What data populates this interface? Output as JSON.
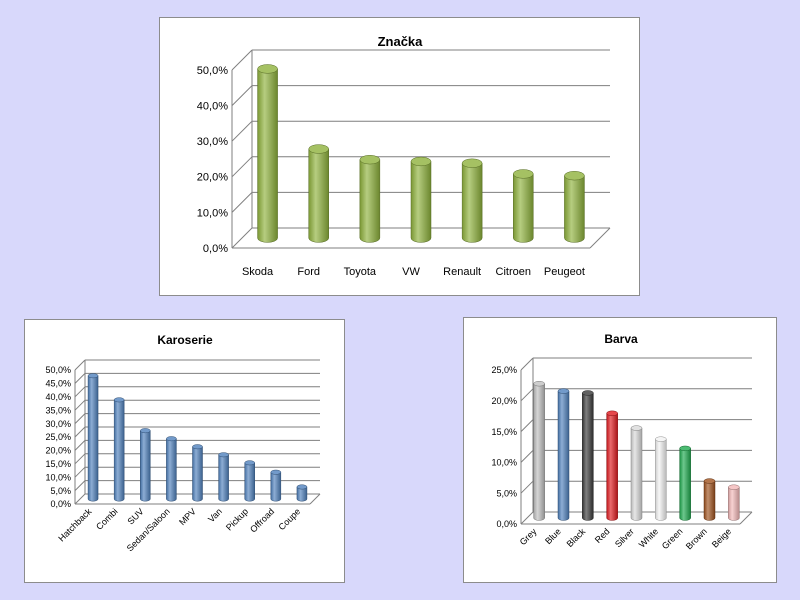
{
  "chart_data": [
    {
      "id": "znacka",
      "type": "bar",
      "title": "Značka",
      "categories": [
        "Skoda",
        "Ford",
        "Toyota",
        "VW",
        "Renault",
        "Citroen",
        "Peugeot"
      ],
      "values": [
        47.5,
        25.0,
        22.0,
        21.5,
        21.0,
        18.0,
        17.5
      ],
      "yticks": [
        "0,0%",
        "10,0%",
        "20,0%",
        "30,0%",
        "40,0%",
        "50,0%"
      ],
      "ylim": [
        0,
        50
      ],
      "xlabel": "",
      "ylabel": "",
      "legend": "none",
      "colors": [
        "#8fb23c"
      ]
    },
    {
      "id": "karoserie",
      "type": "bar",
      "title": "Karoserie",
      "categories": [
        "Hatchback",
        "Combi",
        "SUV",
        "Sedan/Saloon",
        "MPV",
        "Van",
        "Pickup",
        "Offroad",
        "Coupe"
      ],
      "values": [
        46.0,
        37.0,
        25.5,
        22.5,
        19.5,
        16.5,
        13.5,
        10.0,
        4.5
      ],
      "yticks": [
        "0,0%",
        "5,0%",
        "10,0%",
        "15,0%",
        "20,0%",
        "25,0%",
        "30,0%",
        "35,0%",
        "40,0%",
        "45,0%",
        "50,0%"
      ],
      "ylim": [
        0,
        50
      ],
      "xlabel": "",
      "ylabel": "",
      "legend": "none",
      "colors": [
        "#4f81bd"
      ]
    },
    {
      "id": "barva",
      "type": "bar",
      "title": "Barva",
      "categories": [
        "Grey",
        "Blue",
        "Black",
        "Red",
        "Silver",
        "White",
        "Green",
        "Brown",
        "Beige"
      ],
      "values": [
        21.8,
        20.6,
        20.3,
        17.0,
        14.6,
        12.8,
        11.3,
        6.0,
        5.0
      ],
      "yticks": [
        "0,0%",
        "5,0%",
        "10,0%",
        "15,0%",
        "20,0%",
        "25,0%"
      ],
      "ylim": [
        0,
        25
      ],
      "xlabel": "",
      "ylabel": "",
      "legend": "none",
      "colors": [
        "#c0c0c0",
        "#4f81bd",
        "#3a3a3a",
        "#e0191e",
        "#d9d9d9",
        "#f2f2f2",
        "#1faa4f",
        "#a0521e",
        "#f2b8b8"
      ]
    }
  ]
}
